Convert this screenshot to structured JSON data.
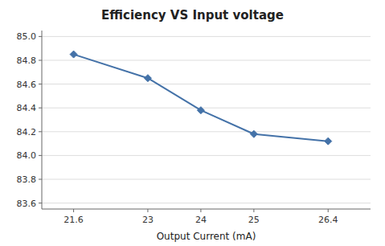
{
  "chart_data": {
    "type": "line",
    "title": "Efficiency VS Input voltage",
    "x_label": "Output Current (mA)",
    "x": [
      21.6,
      23,
      24,
      25,
      26.4
    ],
    "values": [
      84.85,
      84.65,
      84.38,
      84.18,
      84.12
    ],
    "xlim": [
      21.0,
      27.2
    ],
    "xticks": [
      21.6,
      23,
      24,
      25,
      26.4
    ],
    "ylim": [
      83.55,
      85.05
    ],
    "yticks": [
      83.6,
      83.8,
      {
        "value": 84.0,
        "label": "84.0"
      },
      84.2,
      84.4,
      84.6,
      84.8,
      {
        "value": 85.0,
        "label": "85.0"
      }
    ],
    "grid": true,
    "color": "#4472A8",
    "marker": "diamond"
  }
}
